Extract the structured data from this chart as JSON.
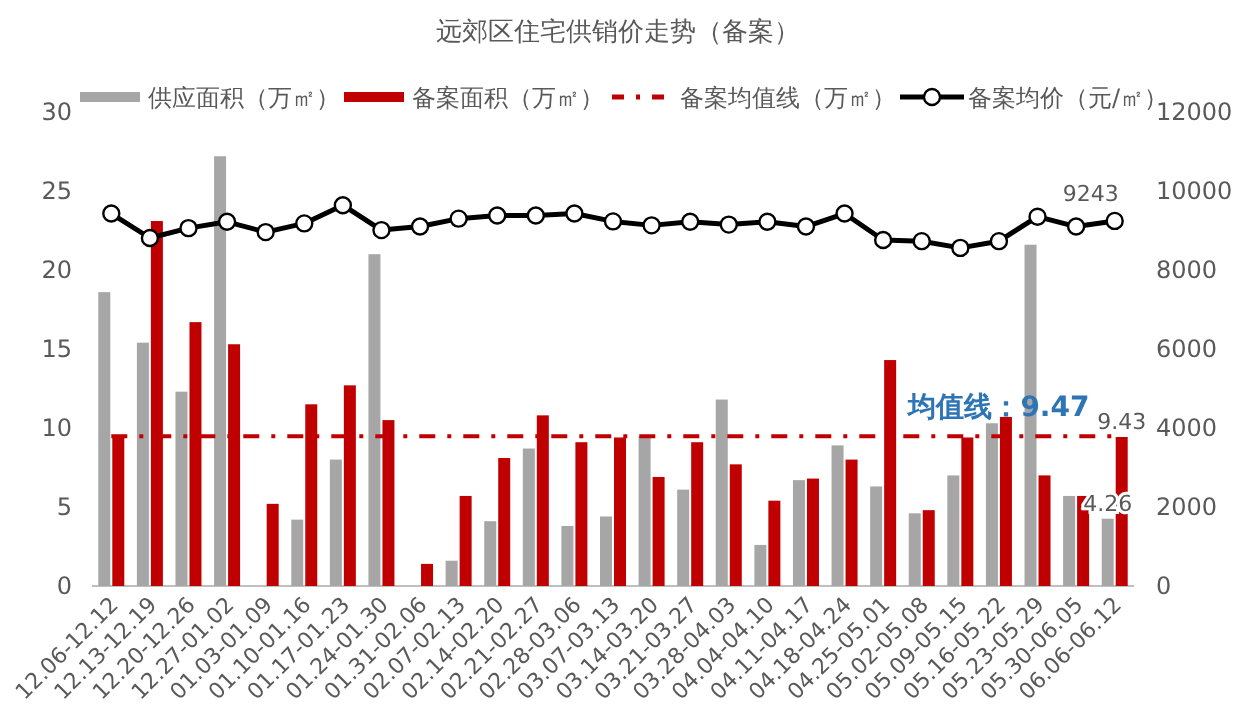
{
  "chart_data": {
    "type": "bar",
    "title": "远郊区住宅供销价走势（备案）",
    "categories": [
      "12.06-12.12",
      "12.13-12.19",
      "12.20-12.26",
      "12.27-01.02",
      "01.03-01.09",
      "01.10-01.16",
      "01.17-01.23",
      "01.24-01.30",
      "01.31-02.06",
      "02.07-02.13",
      "02.14-02.20",
      "02.21-02.27",
      "02.28-03.06",
      "03.07-03.13",
      "03.14-03.20",
      "03.21-03.27",
      "03.28-04.03",
      "04.04-04.10",
      "04.11-04.17",
      "04.18-04.24",
      "04.25-05.01",
      "05.02-05.08",
      "05.09-05.15",
      "05.16-05.22",
      "05.23-05.29",
      "05.30-06.05",
      "06.06-06.12"
    ],
    "series": [
      {
        "name": "供应面积（万㎡）",
        "color": "#a6a6a6",
        "values": [
          18.6,
          15.4,
          12.3,
          27.2,
          null,
          4.2,
          8.0,
          21.0,
          null,
          1.6,
          4.1,
          8.7,
          3.8,
          4.4,
          9.5,
          6.1,
          11.8,
          2.6,
          6.7,
          8.9,
          6.3,
          4.6,
          7.0,
          10.3,
          21.6,
          5.7,
          4.26
        ],
        "value_labels": [
          null,
          null,
          null,
          null,
          null,
          null,
          null,
          null,
          null,
          null,
          null,
          null,
          null,
          null,
          null,
          null,
          null,
          null,
          null,
          null,
          null,
          null,
          null,
          null,
          null,
          null,
          "4.26"
        ]
      },
      {
        "name": "备案面积（万㎡）",
        "color": "#c00000",
        "values": [
          9.5,
          23.1,
          16.7,
          15.3,
          5.2,
          11.5,
          12.7,
          10.5,
          1.4,
          5.7,
          8.1,
          10.8,
          9.1,
          9.4,
          6.9,
          9.1,
          7.7,
          5.4,
          6.8,
          8.0,
          14.3,
          4.8,
          9.4,
          10.7,
          7.0,
          5.7,
          9.43
        ],
        "value_labels": [
          null,
          null,
          null,
          null,
          null,
          null,
          null,
          null,
          null,
          null,
          null,
          null,
          null,
          null,
          null,
          null,
          null,
          null,
          null,
          null,
          null,
          null,
          null,
          null,
          null,
          null,
          "9.43"
        ]
      },
      {
        "name": "备案均值线（万㎡）",
        "type": "line",
        "color": "#c00000",
        "line_style": "dashed",
        "marker": "none",
        "values": [
          9.47,
          9.47,
          9.47,
          9.47,
          9.47,
          9.47,
          9.47,
          9.47,
          9.47,
          9.47,
          9.47,
          9.47,
          9.47,
          9.47,
          9.47,
          9.47,
          9.47,
          9.47,
          9.47,
          9.47,
          9.47,
          9.47,
          9.47,
          9.47,
          9.47,
          9.47,
          9.47
        ]
      },
      {
        "name": "备案均价（元/㎡）",
        "type": "line",
        "axis": "y2",
        "color": "#000000",
        "marker": "circle",
        "values": [
          9430,
          8810,
          9060,
          9220,
          8960,
          9180,
          9640,
          9010,
          9100,
          9300,
          9380,
          9380,
          9430,
          9230,
          9130,
          9220,
          9150,
          9220,
          9100,
          9430,
          8760,
          8730,
          8560,
          8730,
          9350,
          9100,
          9243
        ],
        "value_labels": [
          null,
          null,
          null,
          null,
          null,
          null,
          null,
          null,
          null,
          null,
          null,
          null,
          null,
          null,
          null,
          null,
          null,
          null,
          null,
          null,
          null,
          null,
          null,
          null,
          null,
          null,
          "9243"
        ]
      }
    ],
    "ylim": [
      0,
      30
    ],
    "yticks": [
      0,
      5,
      10,
      15,
      20,
      25,
      30
    ],
    "y2lim": [
      0,
      12000
    ],
    "y2ticks": [
      0,
      2000,
      4000,
      6000,
      8000,
      10000,
      12000
    ],
    "legend": "top",
    "grid": false,
    "annotations": [
      {
        "text": "均值线：9.47",
        "x": "05.16-05.22",
        "y": 9.47
      }
    ]
  }
}
